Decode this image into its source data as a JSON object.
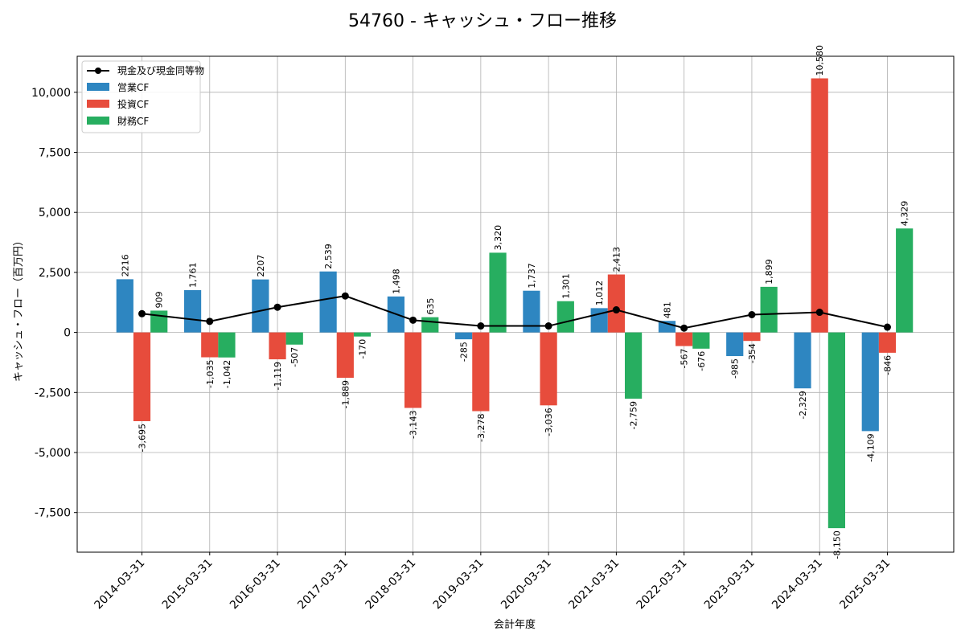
{
  "chart_data": {
    "type": "bar",
    "title": "54760 - キャッシュ・フロー推移",
    "xlabel": "会計年度",
    "ylabel": "キャッシュ・フロー（百万円）",
    "ylim": [
      -9150,
      11500
    ],
    "yticks": [
      -7500,
      -5000,
      -2500,
      0,
      2500,
      5000,
      7500,
      10000
    ],
    "ytick_labels": [
      "-7,500",
      "-5,000",
      "-2,500",
      "0",
      "2,500",
      "5,000",
      "7,500",
      "10,000"
    ],
    "grid": true,
    "legend_position": "top-left",
    "categories": [
      "2014-03-31",
      "2015-03-31",
      "2016-03-31",
      "2017-03-31",
      "2018-03-31",
      "2019-03-31",
      "2020-03-31",
      "2021-03-31",
      "2022-03-31",
      "2023-03-31",
      "2024-03-31",
      "2025-03-31"
    ],
    "series": [
      {
        "name": "営業CF",
        "color": "#2e86c1",
        "values": [
          2216,
          1761,
          2207,
          2539,
          1498,
          -285,
          1737,
          1012,
          481,
          -985,
          -2329,
          -4109
        ],
        "labels": [
          "2216",
          "1,761",
          "2207",
          "2,539",
          "1,498",
          "-285",
          "1,737",
          "1,012",
          "481",
          "-985",
          "-2,329",
          "-4,109"
        ]
      },
      {
        "name": "投資CF",
        "color": "#e74c3c",
        "values": [
          -3695,
          -1035,
          -1119,
          -1889,
          -3143,
          -3278,
          -3036,
          2413,
          -567,
          -354,
          10580,
          -846
        ],
        "labels": [
          "-3,695",
          "-1,035",
          "-1,119",
          "-1,889",
          "-3,143",
          "-3,278",
          "-3,036",
          "2,413",
          "-567",
          "-354",
          "10,580",
          "-846"
        ]
      },
      {
        "name": "財務CF",
        "color": "#27ae60",
        "values": [
          909,
          -1042,
          -507,
          -170,
          635,
          3320,
          1301,
          -2759,
          -676,
          1899,
          -8150,
          4329
        ],
        "labels": [
          "909",
          "-1,042",
          "-507",
          "-170",
          "635",
          "3,320",
          "1,301",
          "-2,759",
          "-676",
          "1,899",
          "-8,150",
          "4,329"
        ]
      }
    ],
    "line_series": {
      "name": "現金及び現金同等物",
      "color": "#000000",
      "values": [
        780,
        460,
        1050,
        1520,
        510,
        270,
        270,
        940,
        180,
        740,
        840,
        220
      ]
    }
  }
}
